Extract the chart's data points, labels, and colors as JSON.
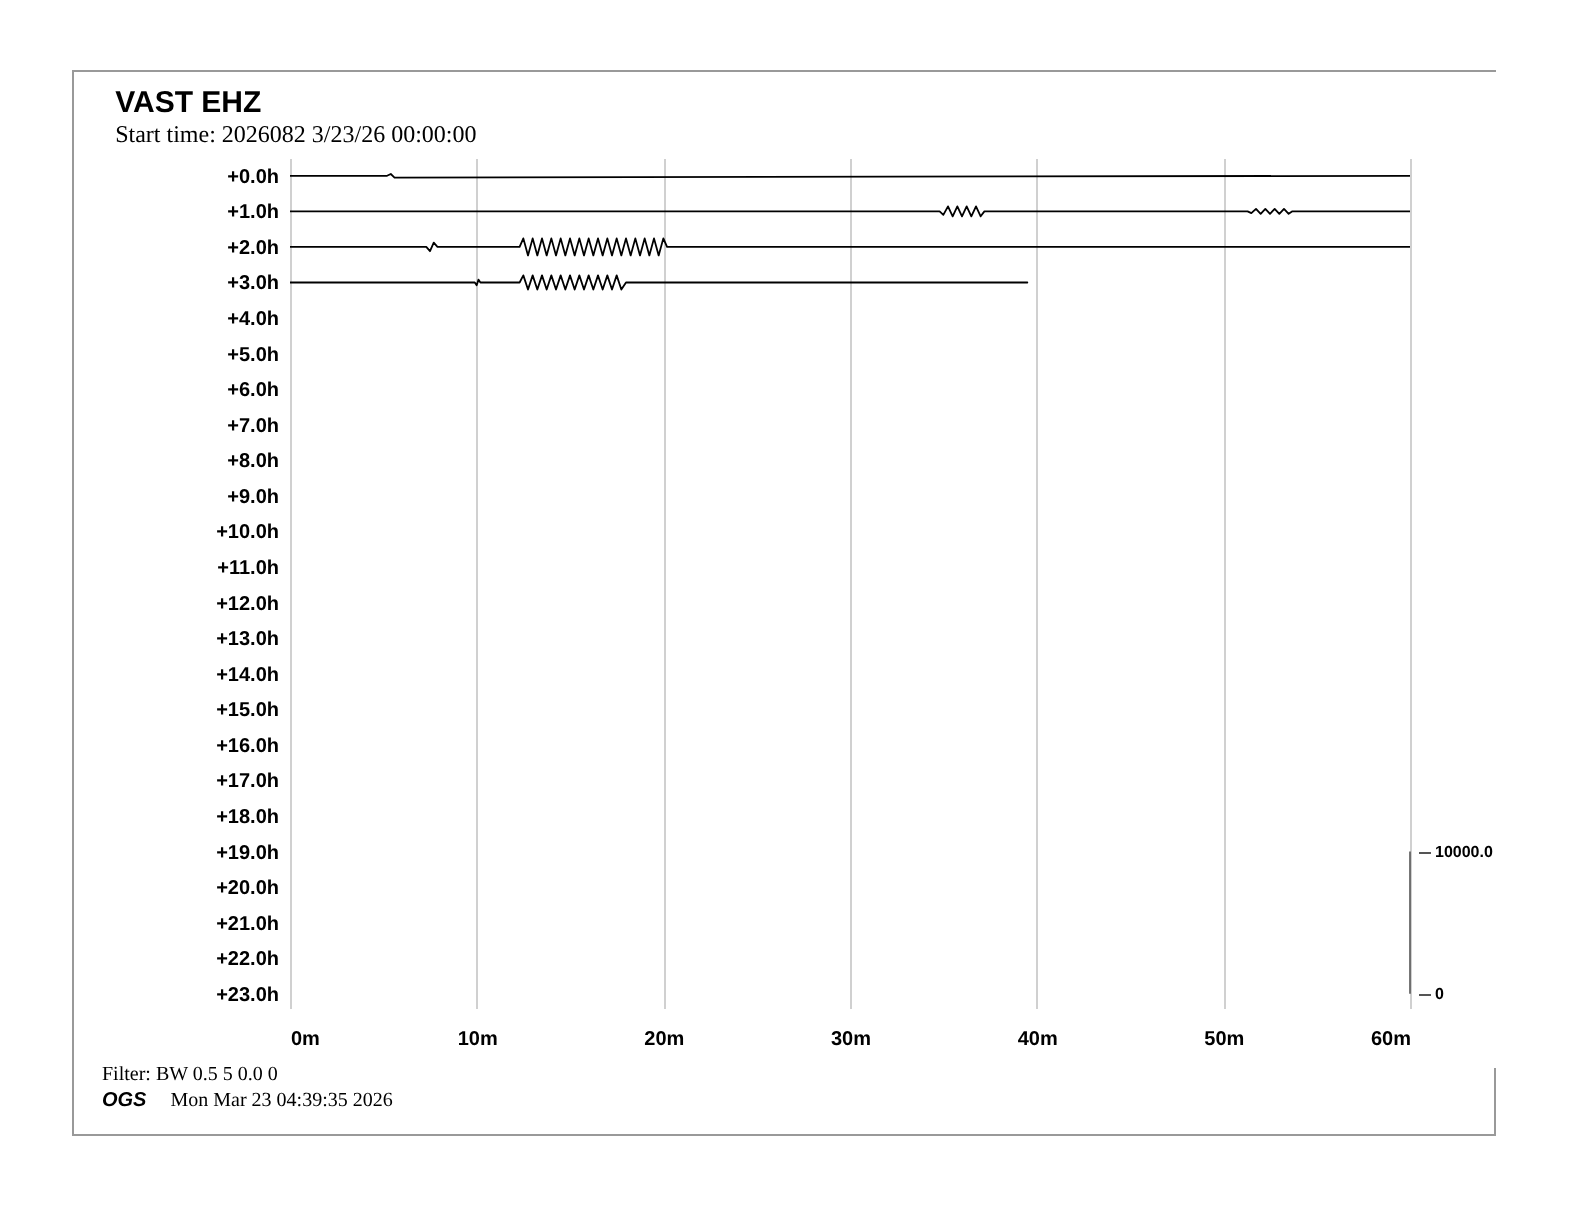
{
  "chart_data": {
    "type": "line",
    "title": "VAST EHZ",
    "subtitle": "Start time: 2026082  3/23/26 00:00:00",
    "annotations": [
      "Filter: BW 0.5 5 0.0 0",
      "OGS",
      "Mon Mar 23 04:39:35 2026"
    ],
    "xlim": [
      0,
      60
    ],
    "xticks": [
      {
        "value": 0,
        "label": "0m"
      },
      {
        "value": 10,
        "label": "10m"
      },
      {
        "value": 20,
        "label": "20m"
      },
      {
        "value": 30,
        "label": "30m"
      },
      {
        "value": 40,
        "label": "40m"
      },
      {
        "value": 50,
        "label": "50m"
      },
      {
        "value": 60,
        "label": "60m"
      }
    ],
    "ylim": [
      23.4,
      -0.5
    ],
    "yticks": [
      {
        "value": 0,
        "label": "+0.0h"
      },
      {
        "value": 1,
        "label": "+1.0h"
      },
      {
        "value": 2,
        "label": "+2.0h"
      },
      {
        "value": 3,
        "label": "+3.0h"
      },
      {
        "value": 4,
        "label": "+4.0h"
      },
      {
        "value": 5,
        "label": "+5.0h"
      },
      {
        "value": 6,
        "label": "+6.0h"
      },
      {
        "value": 7,
        "label": "+7.0h"
      },
      {
        "value": 8,
        "label": "+8.0h"
      },
      {
        "value": 9,
        "label": "+9.0h"
      },
      {
        "value": 10,
        "label": "+10.0h"
      },
      {
        "value": 11,
        "label": "+11.0h"
      },
      {
        "value": 12,
        "label": "+12.0h"
      },
      {
        "value": 13,
        "label": "+13.0h"
      },
      {
        "value": 14,
        "label": "+14.0h"
      },
      {
        "value": 15,
        "label": "+15.0h"
      },
      {
        "value": 16,
        "label": "+16.0h"
      },
      {
        "value": 17,
        "label": "+17.0h"
      },
      {
        "value": 18,
        "label": "+18.0h"
      },
      {
        "value": 19,
        "label": "+19.0h"
      },
      {
        "value": 20,
        "label": "+20.0h"
      },
      {
        "value": 21,
        "label": "+21.0h"
      },
      {
        "value": 22,
        "label": "+22.0h"
      },
      {
        "value": 23,
        "label": "+23.0h"
      }
    ],
    "y2lim": [
      -1000,
      58750
    ],
    "y2ticks": [
      {
        "value": 0,
        "label": "0"
      },
      {
        "value": 10000,
        "label": "10000.0"
      }
    ],
    "grid": "x",
    "marker": "none",
    "line_style": "solid",
    "series": [
      {
        "color": "#000000",
        "x": [
          0,
          5.2,
          5.4,
          5.6,
          60
        ],
        "values": [
          0,
          0,
          -0.05,
          0.05,
          0
        ]
      },
      {
        "color": "#000000",
        "x": [
          0,
          34.8,
          35,
          35.25,
          35.5,
          35.75,
          36,
          36.25,
          36.5,
          36.75,
          37,
          37.2,
          51.3,
          51.5,
          51.75,
          52,
          52.25,
          52.5,
          52.75,
          53,
          53.25,
          53.5,
          53.7,
          60
        ],
        "values": [
          1,
          1,
          1.1,
          0.86,
          1.14,
          0.86,
          1.14,
          0.86,
          1.14,
          0.86,
          1.14,
          1,
          1,
          1.05,
          0.93,
          1.07,
          0.93,
          1.07,
          0.93,
          1.07,
          0.93,
          1.07,
          1,
          1
        ]
      },
      {
        "color": "#000000",
        "x": [
          0,
          7.3,
          7.5,
          7.7,
          7.9,
          12.3,
          12.5,
          12.75,
          13,
          13.25,
          13.5,
          13.75,
          14,
          14.25,
          14.5,
          14.75,
          15,
          15.25,
          15.5,
          15.75,
          16,
          16.25,
          16.5,
          16.75,
          17,
          17.25,
          17.5,
          17.75,
          18,
          18.25,
          18.5,
          18.75,
          19,
          19.25,
          19.5,
          19.75,
          20,
          20.2,
          60
        ],
        "values": [
          2,
          2,
          2.12,
          1.88,
          2,
          2,
          1.76,
          2.24,
          1.76,
          2.24,
          1.76,
          2.24,
          1.76,
          2.24,
          1.76,
          2.24,
          1.76,
          2.24,
          1.76,
          2.24,
          1.76,
          2.24,
          1.76,
          2.24,
          1.76,
          2.24,
          1.76,
          2.24,
          1.76,
          2.24,
          1.76,
          2.24,
          1.76,
          2.24,
          1.76,
          2.24,
          1.76,
          2,
          2
        ]
      },
      {
        "color": "#000000",
        "x": [
          0,
          9.9,
          10,
          10.1,
          10.2,
          12.3,
          12.5,
          12.75,
          13,
          13.25,
          13.5,
          13.75,
          14,
          14.25,
          14.5,
          14.75,
          15,
          15.25,
          15.5,
          15.75,
          16,
          16.25,
          16.5,
          16.75,
          17,
          17.25,
          17.5,
          17.75,
          18,
          39.5
        ],
        "values": [
          3,
          3,
          3.08,
          2.92,
          3,
          3,
          2.8,
          3.2,
          2.8,
          3.2,
          2.8,
          3.2,
          2.8,
          3.2,
          2.8,
          3.2,
          2.8,
          3.2,
          2.8,
          3.2,
          2.8,
          3.2,
          2.8,
          3.2,
          2.8,
          3.2,
          2.8,
          3.2,
          3,
          3
        ]
      }
    ]
  }
}
